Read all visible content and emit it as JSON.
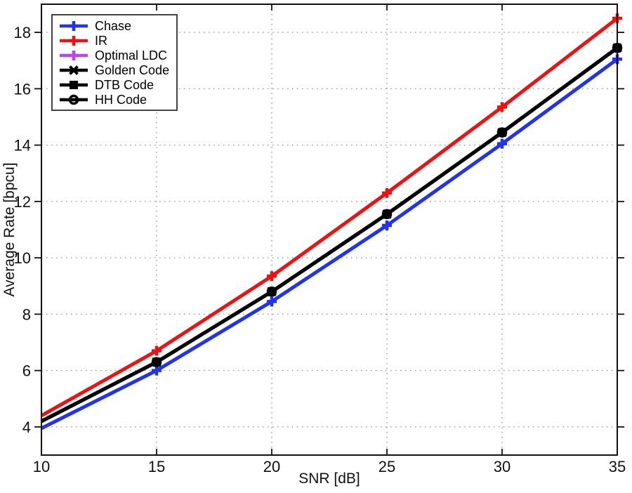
{
  "chart_data": {
    "type": "line",
    "title": "",
    "xlabel": "SNR [dB]",
    "ylabel": "Average Rate [bpcu]",
    "x": [
      10,
      15,
      20,
      25,
      30,
      35
    ],
    "xlim": [
      10,
      35
    ],
    "ylim": [
      3,
      19
    ],
    "xticks": [
      10,
      15,
      20,
      25,
      30,
      35
    ],
    "yticks": [
      4,
      6,
      8,
      10,
      12,
      14,
      16,
      18
    ],
    "grid": "dotted",
    "grid_color": "#909090",
    "axis_color": "#111111",
    "legend_position": "top-left",
    "series": [
      {
        "name": "Chase",
        "color": "#2233ee",
        "marker": "plus",
        "values": [
          3.95,
          6.0,
          8.45,
          11.15,
          14.05,
          17.05
        ]
      },
      {
        "name": "IR",
        "color": "#ee1111",
        "marker": "plus",
        "values": [
          4.4,
          6.7,
          9.35,
          12.3,
          15.35,
          18.5
        ]
      },
      {
        "name": "Optimal LDC",
        "color": "#bb44ee",
        "marker": "plus",
        "values": [
          4.2,
          6.3,
          8.8,
          11.55,
          14.45,
          17.45
        ]
      },
      {
        "name": "Golden Code",
        "color": "#000000",
        "marker": "x",
        "values": [
          4.2,
          6.3,
          8.8,
          11.55,
          14.45,
          17.45
        ]
      },
      {
        "name": "DTB Code",
        "color": "#000000",
        "marker": "square",
        "values": [
          4.2,
          6.3,
          8.8,
          11.55,
          14.45,
          17.45
        ]
      },
      {
        "name": "HH Code",
        "color": "#000000",
        "marker": "circle",
        "values": [
          4.2,
          6.3,
          8.8,
          11.55,
          14.45,
          17.45
        ]
      }
    ]
  }
}
